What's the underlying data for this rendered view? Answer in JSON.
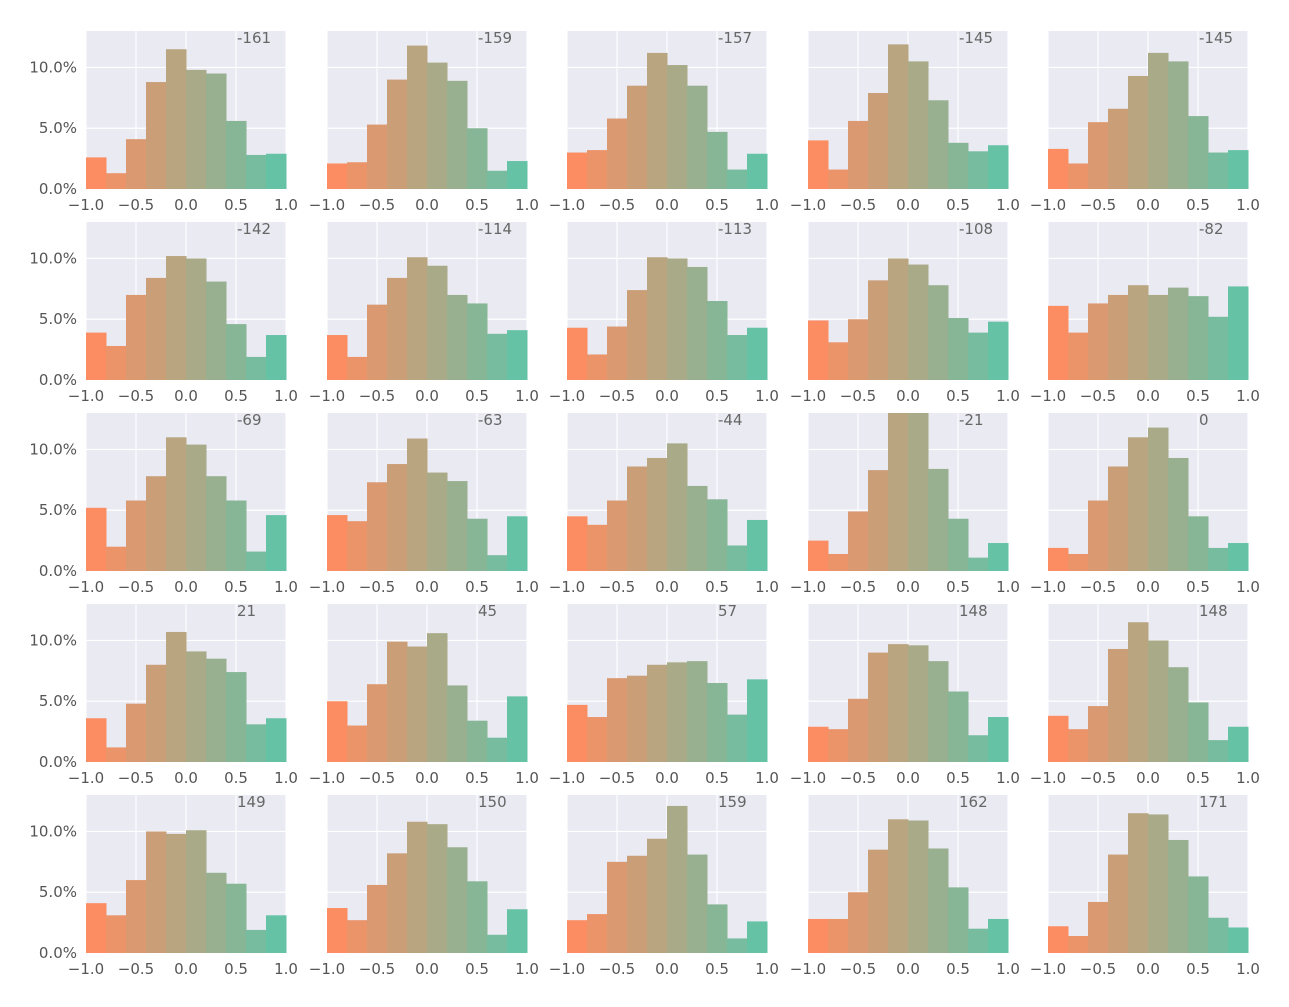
{
  "colors": {
    "panel_bg": "#EAEAF2",
    "grid": "#FFFFFF",
    "bar_start": "#FC8D62",
    "bar_end": "#66C2A5",
    "tick_text": "#555555",
    "label_text": "#666666"
  },
  "chart_data": {
    "type": "bar",
    "layout": {
      "rows": 5,
      "cols": 5
    },
    "bins": [
      -1.0,
      -0.8,
      -0.6,
      -0.4,
      -0.2,
      0.0,
      0.2,
      0.4,
      0.6,
      0.8,
      1.0
    ],
    "xlim": [
      -1.0,
      1.0
    ],
    "ylim": [
      0,
      13
    ],
    "xticks": [
      -1.0,
      -0.5,
      0.0,
      0.5,
      1.0
    ],
    "xtick_labels": [
      "−1.0",
      "−0.5",
      "0.0",
      "0.5",
      "1.0"
    ],
    "yticks": [
      0,
      5,
      10
    ],
    "ytick_labels": [
      "0.0%",
      "5.0%",
      "10.0%"
    ],
    "grid": true,
    "panels": [
      {
        "label": "-161",
        "values": [
          2.6,
          1.3,
          4.1,
          8.8,
          11.5,
          9.8,
          9.5,
          5.6,
          2.8,
          2.9
        ]
      },
      {
        "label": "-159",
        "values": [
          2.1,
          2.2,
          5.3,
          9.0,
          11.8,
          10.4,
          8.9,
          5.0,
          1.5,
          2.3
        ]
      },
      {
        "label": "-157",
        "values": [
          3.0,
          3.2,
          5.8,
          8.5,
          11.2,
          10.2,
          8.5,
          4.7,
          1.6,
          2.9
        ]
      },
      {
        "label": "-145",
        "values": [
          4.0,
          1.6,
          5.6,
          7.9,
          11.9,
          10.5,
          7.3,
          3.8,
          3.1,
          3.6
        ]
      },
      {
        "label": "-145",
        "values": [
          3.3,
          2.1,
          5.5,
          6.6,
          9.3,
          11.2,
          10.5,
          6.0,
          3.0,
          3.2
        ]
      },
      {
        "label": "-142",
        "values": [
          3.9,
          2.8,
          7.0,
          8.4,
          10.2,
          10.0,
          8.1,
          4.6,
          1.9,
          3.7
        ]
      },
      {
        "label": "-114",
        "values": [
          3.7,
          1.9,
          6.2,
          8.4,
          10.1,
          9.4,
          7.0,
          6.3,
          3.8,
          4.1
        ]
      },
      {
        "label": "-113",
        "values": [
          4.3,
          2.1,
          4.4,
          7.4,
          10.1,
          10.0,
          9.3,
          6.5,
          3.7,
          4.3
        ]
      },
      {
        "label": "-108",
        "values": [
          4.9,
          3.1,
          5.0,
          8.2,
          10.0,
          9.5,
          7.8,
          5.1,
          3.9,
          4.8
        ]
      },
      {
        "label": "-82",
        "values": [
          6.1,
          3.9,
          6.3,
          7.0,
          7.8,
          7.0,
          7.6,
          6.9,
          5.2,
          7.7
        ]
      },
      {
        "label": "-69",
        "values": [
          5.2,
          2.0,
          5.8,
          7.8,
          11.0,
          10.4,
          7.8,
          5.8,
          1.6,
          4.6
        ]
      },
      {
        "label": "-63",
        "values": [
          4.6,
          4.1,
          7.3,
          8.8,
          10.9,
          8.1,
          7.4,
          4.3,
          1.3,
          4.5
        ]
      },
      {
        "label": "-44",
        "values": [
          4.5,
          3.8,
          5.8,
          8.6,
          9.3,
          10.5,
          7.0,
          5.9,
          2.1,
          4.2
        ]
      },
      {
        "label": "-21",
        "values": [
          2.5,
          1.4,
          4.9,
          8.3,
          13.0,
          13.0,
          8.4,
          4.3,
          1.1,
          2.3
        ]
      },
      {
        "label": "0",
        "values": [
          1.9,
          1.4,
          5.8,
          8.6,
          11.0,
          11.8,
          9.3,
          4.5,
          1.9,
          2.3
        ]
      },
      {
        "label": "21",
        "values": [
          3.6,
          1.2,
          4.8,
          8.0,
          10.7,
          9.1,
          8.5,
          7.4,
          3.1,
          3.6
        ]
      },
      {
        "label": "45",
        "values": [
          5.0,
          3.0,
          6.4,
          9.9,
          9.5,
          10.6,
          6.3,
          3.4,
          2.0,
          5.4
        ]
      },
      {
        "label": "57",
        "values": [
          4.7,
          3.7,
          6.9,
          7.1,
          8.0,
          8.2,
          8.3,
          6.5,
          3.9,
          6.8
        ]
      },
      {
        "label": "148",
        "values": [
          2.9,
          2.7,
          5.2,
          9.0,
          9.7,
          9.6,
          8.3,
          5.8,
          2.2,
          3.7
        ]
      },
      {
        "label": "148",
        "values": [
          3.8,
          2.7,
          4.6,
          9.3,
          11.5,
          10.0,
          7.8,
          4.9,
          1.8,
          2.9
        ]
      },
      {
        "label": "149",
        "values": [
          4.1,
          3.1,
          6.0,
          10.0,
          9.8,
          10.1,
          6.6,
          5.7,
          1.9,
          3.1
        ]
      },
      {
        "label": "150",
        "values": [
          3.7,
          2.7,
          5.6,
          8.2,
          10.8,
          10.6,
          8.7,
          5.9,
          1.5,
          3.6
        ]
      },
      {
        "label": "159",
        "values": [
          2.7,
          3.2,
          7.5,
          8.0,
          9.4,
          12.1,
          8.1,
          4.0,
          1.2,
          2.6
        ]
      },
      {
        "label": "162",
        "values": [
          2.8,
          2.8,
          5.0,
          8.5,
          11.0,
          10.9,
          8.6,
          5.4,
          2.0,
          2.8
        ]
      },
      {
        "label": "171",
        "values": [
          2.2,
          1.4,
          4.2,
          8.1,
          11.5,
          11.4,
          9.3,
          6.3,
          2.9,
          2.1
        ]
      }
    ]
  }
}
